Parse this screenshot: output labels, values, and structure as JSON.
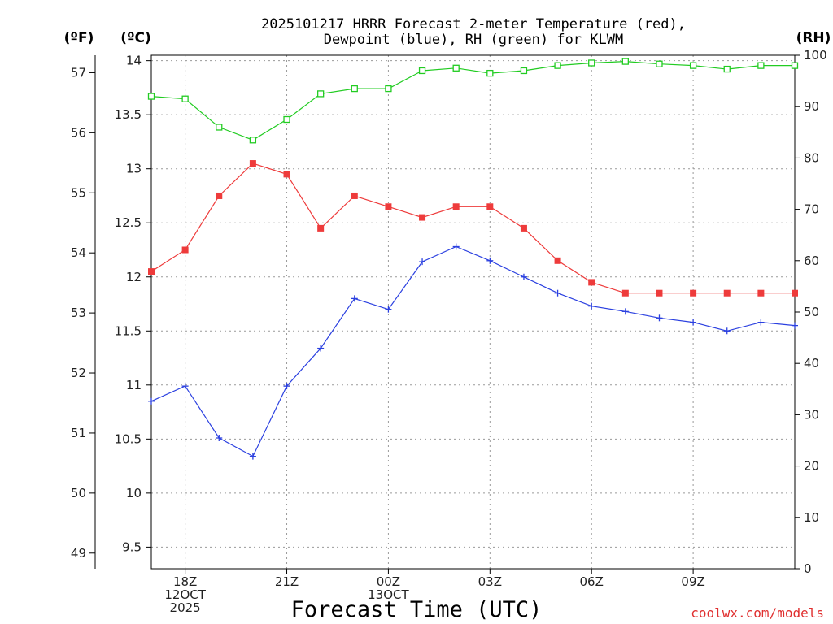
{
  "chart_data": {
    "type": "line",
    "title_line1": "2025101217 HRRR Forecast 2-meter Temperature (red),",
    "title_line2": "Dewpoint (blue), RH (green) for KLWM",
    "xlabel": "Forecast Time (UTC)",
    "credit": "coolwx.com/models",
    "units": {
      "f": "(ºF)",
      "c": "(ºC)",
      "rh": "(RH)"
    },
    "x_hours": [
      17,
      18,
      19,
      20,
      21,
      22,
      23,
      24,
      25,
      26,
      27,
      28,
      29,
      30,
      31,
      32,
      33,
      34,
      35,
      36
    ],
    "xlim": [
      17,
      36
    ],
    "x_ticks": [
      {
        "hour": 18,
        "lines": [
          "18Z",
          "12OCT",
          "2025"
        ]
      },
      {
        "hour": 21,
        "lines": [
          "21Z"
        ]
      },
      {
        "hour": 24,
        "lines": [
          "00Z",
          "13OCT"
        ]
      },
      {
        "hour": 27,
        "lines": [
          "03Z"
        ]
      },
      {
        "hour": 30,
        "lines": [
          "06Z"
        ]
      },
      {
        "hour": 33,
        "lines": [
          "09Z"
        ]
      }
    ],
    "c_axis": {
      "lim": [
        9.3,
        14.05
      ],
      "ticks": [
        "9.5",
        "10",
        "10.5",
        "11",
        "11.5",
        "12",
        "12.5",
        "13",
        "13.5",
        "14"
      ]
    },
    "f_axis": {
      "lim": [
        48.74,
        57.29
      ],
      "ticks": [
        "49",
        "50",
        "51",
        "52",
        "53",
        "54",
        "55",
        "56",
        "57"
      ]
    },
    "rh_axis": {
      "lim": [
        0,
        100
      ],
      "ticks": [
        "0",
        "10",
        "20",
        "30",
        "40",
        "50",
        "60",
        "70",
        "80",
        "90",
        "100"
      ]
    },
    "series": [
      {
        "name": "2-meter Temperature",
        "axis": "c",
        "color": "#ee3b3b",
        "marker": "filled-square",
        "values": [
          12.05,
          12.25,
          12.75,
          13.05,
          12.95,
          12.45,
          12.75,
          12.65,
          12.55,
          12.65,
          12.65,
          12.45,
          12.15,
          11.95,
          11.85,
          11.85,
          11.85,
          11.85,
          11.85,
          11.85
        ]
      },
      {
        "name": "Dewpoint",
        "axis": "c",
        "color": "#2b40e0",
        "marker": "plus",
        "values": [
          10.85,
          10.99,
          10.51,
          10.34,
          10.99,
          11.34,
          11.8,
          11.7,
          12.14,
          12.28,
          12.15,
          12.0,
          11.85,
          11.73,
          11.68,
          11.62,
          11.58,
          11.5,
          11.58,
          11.55
        ]
      },
      {
        "name": "RH",
        "axis": "rh",
        "color": "#22cc22",
        "marker": "open-square",
        "values": [
          92,
          91.5,
          86,
          83.5,
          87.5,
          92.5,
          93.5,
          93.5,
          97,
          97.5,
          96.5,
          97,
          98,
          98.5,
          98.8,
          98.3,
          98,
          97.3,
          98,
          98
        ]
      }
    ]
  }
}
